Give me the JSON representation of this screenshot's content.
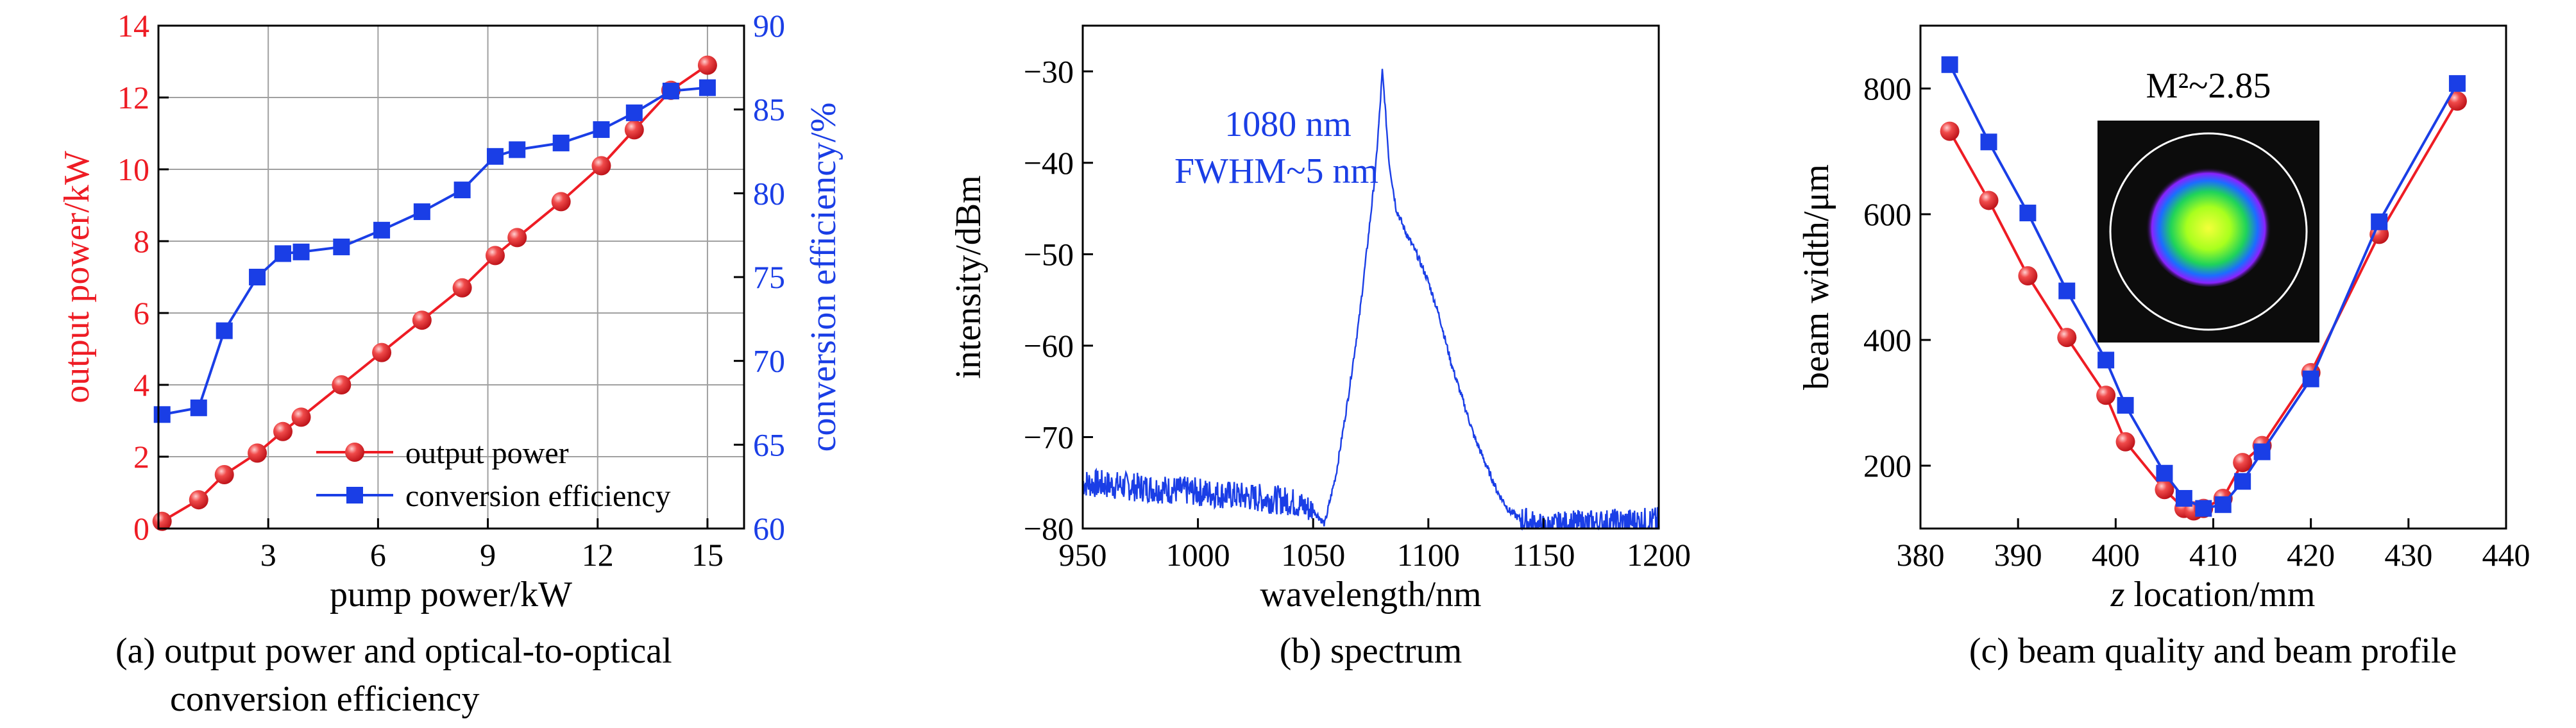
{
  "colors": {
    "red": "#ee1c24",
    "blue": "#1a3ee6",
    "axis": "#000000",
    "grid": "#a0a0a0",
    "inset_bg": "#0c0c0c",
    "inset_ring": "#ffffff"
  },
  "chart_data": [
    {
      "type": "line",
      "subcaption": [
        "(a) output power and optical-to-optical",
        "conversion efficiency"
      ],
      "xlabel": "pump power/kW",
      "ylabel_left": "output power/kW",
      "ylabel_right": "conversion efficiency/%",
      "xlim": [
        0,
        16
      ],
      "ylim_left": [
        0,
        14
      ],
      "ylim_right": [
        60,
        90
      ],
      "xticks": [
        "3",
        "6",
        "9",
        "12",
        "15"
      ],
      "yticks_left": [
        "0",
        "2",
        "4",
        "6",
        "8",
        "10",
        "12",
        "14"
      ],
      "yticks_right": [
        "60",
        "65",
        "70",
        "75",
        "80",
        "85",
        "90"
      ],
      "grid": true,
      "legend_position": "bottom-right",
      "series": [
        {
          "name": "output power",
          "axis": "left",
          "color": "#ee1c24",
          "marker": "sphere",
          "x": [
            0.1,
            1.1,
            1.8,
            2.7,
            3.4,
            3.9,
            5.0,
            6.1,
            7.2,
            8.3,
            9.2,
            9.8,
            11.0,
            12.1,
            13.0,
            14.0,
            15.0
          ],
          "y": [
            0.2,
            0.8,
            1.5,
            2.1,
            2.7,
            3.1,
            4.0,
            4.9,
            5.8,
            6.7,
            7.6,
            8.1,
            9.1,
            10.1,
            11.1,
            12.2,
            12.9
          ]
        },
        {
          "name": "conversion efficiency",
          "axis": "right",
          "color": "#1a3ee6",
          "marker": "square",
          "x": [
            0.1,
            1.1,
            1.8,
            2.7,
            3.4,
            3.9,
            5.0,
            6.1,
            7.2,
            8.3,
            9.2,
            9.8,
            11.0,
            12.1,
            13.0,
            14.0,
            15.0
          ],
          "y": [
            66.8,
            67.2,
            71.8,
            75.0,
            76.4,
            76.5,
            76.8,
            77.8,
            78.9,
            80.2,
            82.2,
            82.6,
            83.0,
            83.8,
            84.8,
            86.1,
            86.3
          ]
        }
      ]
    },
    {
      "type": "line",
      "subcaption": [
        "(b) spectrum"
      ],
      "xlabel": "wavelength/nm",
      "ylabel": "intensity/dBm",
      "xlim": [
        950,
        1200
      ],
      "ylim": [
        -80,
        -25
      ],
      "xticks": [
        "950",
        "1000",
        "1050",
        "1100",
        "1150",
        "1200"
      ],
      "yticks": [
        "-80",
        "-70",
        "-60",
        "-50",
        "-40",
        "-30"
      ],
      "grid": false,
      "annotations": [
        "1080 nm",
        "FWHM~5 nm"
      ],
      "series": [
        {
          "color": "#1a3ee6",
          "x": [
            950,
            1000,
            1040,
            1050,
            1055,
            1060,
            1065,
            1070,
            1074,
            1077,
            1079,
            1080,
            1081,
            1083,
            1086,
            1090,
            1095,
            1100,
            1105,
            1110,
            1115,
            1120,
            1125,
            1130,
            1135,
            1140,
            1145,
            1150,
            1160,
            1180,
            1200
          ],
          "y": [
            -75,
            -76,
            -77,
            -78,
            -79.5,
            -74,
            -66,
            -57,
            -48,
            -41,
            -34,
            -30,
            -33,
            -40,
            -45,
            -47.5,
            -50,
            -53,
            -57,
            -62,
            -66,
            -70,
            -73,
            -76,
            -78,
            -79,
            -79.5,
            -80,
            -79.6,
            -79.4,
            -79.2
          ]
        }
      ]
    },
    {
      "type": "line",
      "subcaption": [
        "(c) beam quality and beam profile"
      ],
      "xlabel_italic": "z",
      "xlabel": " location/mm",
      "ylabel": "beam width/μm",
      "xlim": [
        380,
        440
      ],
      "ylim": [
        100,
        900
      ],
      "xticks": [
        "380",
        "390",
        "400",
        "410",
        "420",
        "430",
        "440"
      ],
      "yticks": [
        "200",
        "400",
        "600",
        "800"
      ],
      "grid": false,
      "inset_label": "M²~2.85",
      "series": [
        {
          "color": "#ee1c24",
          "marker": "sphere",
          "x": [
            383,
            387,
            391,
            395,
            399,
            401,
            405,
            407,
            408,
            409,
            411,
            413,
            415,
            420,
            427,
            435
          ],
          "y": [
            732,
            622,
            502,
            404,
            312,
            238,
            162,
            132,
            128,
            132,
            148,
            205,
            232,
            348,
            568,
            780
          ]
        },
        {
          "color": "#1a3ee6",
          "marker": "square",
          "x": [
            383,
            387,
            391,
            395,
            399,
            401,
            405,
            407,
            409,
            411,
            413,
            415,
            420,
            427,
            435
          ],
          "y": [
            838,
            715,
            602,
            478,
            368,
            296,
            188,
            148,
            132,
            138,
            175,
            222,
            338,
            588,
            808
          ]
        }
      ]
    }
  ]
}
